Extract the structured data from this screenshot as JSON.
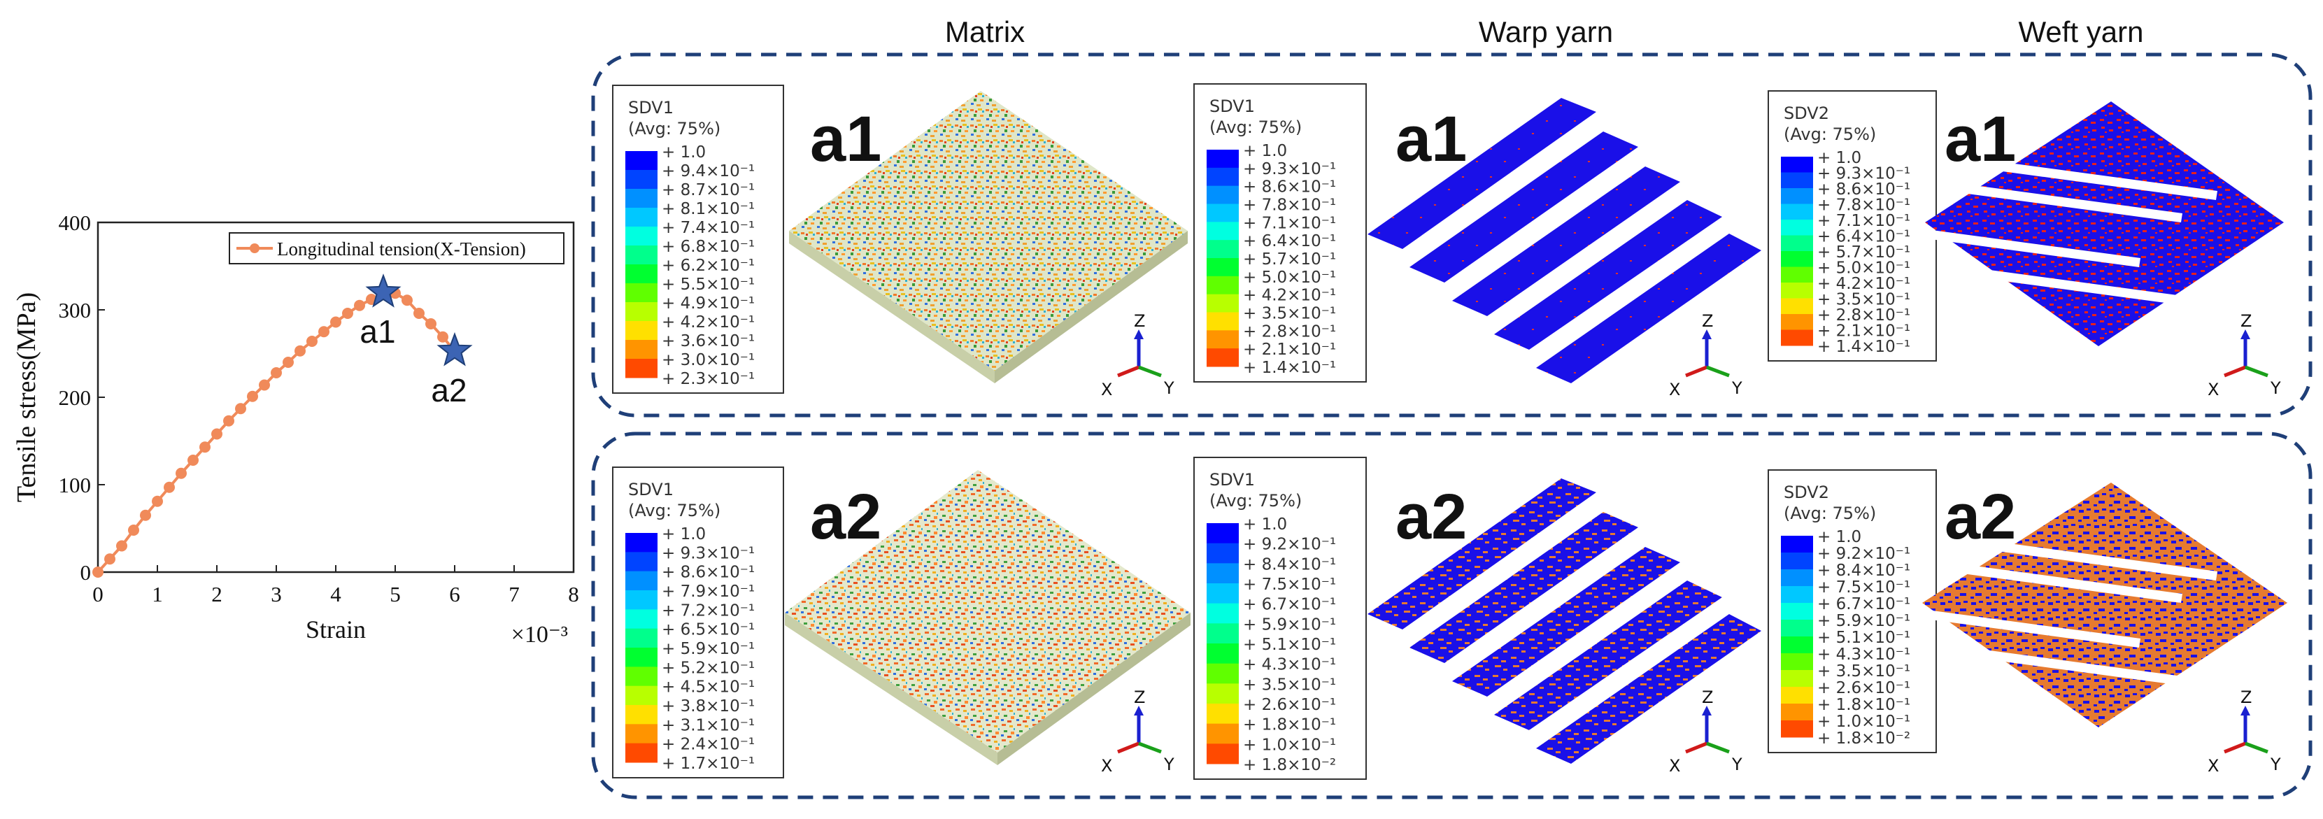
{
  "columns": {
    "matrix": "Matrix",
    "warp": "Warp yarn",
    "weft": "Weft yarn"
  },
  "chart_data": {
    "type": "line",
    "title": "",
    "xlabel": "Strain",
    "ylabel": "Tensile stress(MPa)",
    "x_multiplier": "×10⁻³",
    "xlim": [
      0,
      8
    ],
    "ylim": [
      0,
      400
    ],
    "xticks": [
      "0",
      "1",
      "2",
      "3",
      "4",
      "5",
      "6",
      "7",
      "8"
    ],
    "yticks": [
      "0",
      "100",
      "200",
      "300",
      "400"
    ],
    "legend_placement": "top-right",
    "series": [
      {
        "name": "Longitudinal tension(X-Tension)",
        "color": "#f08a5a",
        "x": [
          0,
          0.2,
          0.4,
          0.6,
          0.8,
          1.0,
          1.2,
          1.4,
          1.6,
          1.8,
          2.0,
          2.2,
          2.4,
          2.6,
          2.8,
          3.0,
          3.2,
          3.4,
          3.6,
          3.8,
          4.0,
          4.2,
          4.4,
          4.6,
          4.8,
          5.0,
          5.2,
          5.4,
          5.6,
          5.8,
          6.0
        ],
        "y": [
          0,
          15,
          30,
          48,
          65,
          81,
          97,
          113,
          128,
          143,
          158,
          173,
          187,
          201,
          214,
          228,
          240,
          253,
          264,
          275,
          286,
          296,
          305,
          312,
          318,
          319,
          311,
          296,
          284,
          269,
          253
        ]
      }
    ],
    "markers": [
      {
        "label": "a1",
        "x": 4.8,
        "y": 320
      },
      {
        "label": "a2",
        "x": 6.0,
        "y": 253
      }
    ]
  },
  "legends": [
    {
      "title": "SDV1",
      "avg": "(Avg: 75%)",
      "values": [
        "+ 1.0",
        "+ 9.4×10⁻¹",
        "+ 8.7×10⁻¹",
        "+ 8.1×10⁻¹",
        "+ 7.4×10⁻¹",
        "+ 6.8×10⁻¹",
        "+ 6.2×10⁻¹",
        "+ 5.5×10⁻¹",
        "+ 4.9×10⁻¹",
        "+ 4.2×10⁻¹",
        "+ 3.6×10⁻¹",
        "+ 3.0×10⁻¹",
        "+ 2.3×10⁻¹"
      ]
    },
    {
      "title": "SDV1",
      "avg": "(Avg: 75%)",
      "values": [
        "+ 1.0",
        "+ 9.3×10⁻¹",
        "+ 8.6×10⁻¹",
        "+ 7.8×10⁻¹",
        "+ 7.1×10⁻¹",
        "+ 6.4×10⁻¹",
        "+ 5.7×10⁻¹",
        "+ 5.0×10⁻¹",
        "+ 4.2×10⁻¹",
        "+ 3.5×10⁻¹",
        "+ 2.8×10⁻¹",
        "+ 2.1×10⁻¹",
        "+ 1.4×10⁻¹"
      ]
    },
    {
      "title": "SDV2",
      "avg": "(Avg: 75%)",
      "values": [
        "+ 1.0",
        "+ 9.3×10⁻¹",
        "+ 8.6×10⁻¹",
        "+ 7.8×10⁻¹",
        "+ 7.1×10⁻¹",
        "+ 6.4×10⁻¹",
        "+ 5.7×10⁻¹",
        "+ 5.0×10⁻¹",
        "+ 4.2×10⁻¹",
        "+ 3.5×10⁻¹",
        "+ 2.8×10⁻¹",
        "+ 2.1×10⁻¹",
        "+ 1.4×10⁻¹"
      ]
    },
    {
      "title": "SDV1",
      "avg": "(Avg: 75%)",
      "values": [
        "+ 1.0",
        "+ 9.3×10⁻¹",
        "+ 8.6×10⁻¹",
        "+ 7.9×10⁻¹",
        "+ 7.2×10⁻¹",
        "+ 6.5×10⁻¹",
        "+ 5.9×10⁻¹",
        "+ 5.2×10⁻¹",
        "+ 4.5×10⁻¹",
        "+ 3.8×10⁻¹",
        "+ 3.1×10⁻¹",
        "+ 2.4×10⁻¹",
        "+ 1.7×10⁻¹"
      ]
    },
    {
      "title": "SDV1",
      "avg": "(Avg: 75%)",
      "values": [
        "+ 1.0",
        "+ 9.2×10⁻¹",
        "+ 8.4×10⁻¹",
        "+ 7.5×10⁻¹",
        "+ 6.7×10⁻¹",
        "+ 5.9×10⁻¹",
        "+ 5.1×10⁻¹",
        "+ 4.3×10⁻¹",
        "+ 3.5×10⁻¹",
        "+ 2.6×10⁻¹",
        "+ 1.8×10⁻¹",
        "+ 1.0×10⁻¹",
        "+ 1.8×10⁻²"
      ]
    },
    {
      "title": "SDV2",
      "avg": "(Avg: 75%)",
      "values": [
        "+ 1.0",
        "+ 9.2×10⁻¹",
        "+ 8.4×10⁻¹",
        "+ 7.5×10⁻¹",
        "+ 6.7×10⁻¹",
        "+ 5.9×10⁻¹",
        "+ 5.1×10⁻¹",
        "+ 4.3×10⁻¹",
        "+ 3.5×10⁻¹",
        "+ 2.6×10⁻¹",
        "+ 1.8×10⁻¹",
        "+ 1.0×10⁻¹",
        "+ 1.8×10⁻²"
      ]
    }
  ],
  "legend_colors": [
    "#0000ff",
    "#0044ff",
    "#0090ff",
    "#00c8ff",
    "#00ffe0",
    "#00ff8c",
    "#00ff30",
    "#60ff00",
    "#b8ff00",
    "#ffe000",
    "#ff9400",
    "#ff4a00",
    "#ff0000"
  ],
  "state_labels": [
    "a1",
    "a1",
    "a1",
    "a2",
    "a2",
    "a2"
  ],
  "triad": {
    "z": "Z",
    "x": "X",
    "y": "Y"
  }
}
